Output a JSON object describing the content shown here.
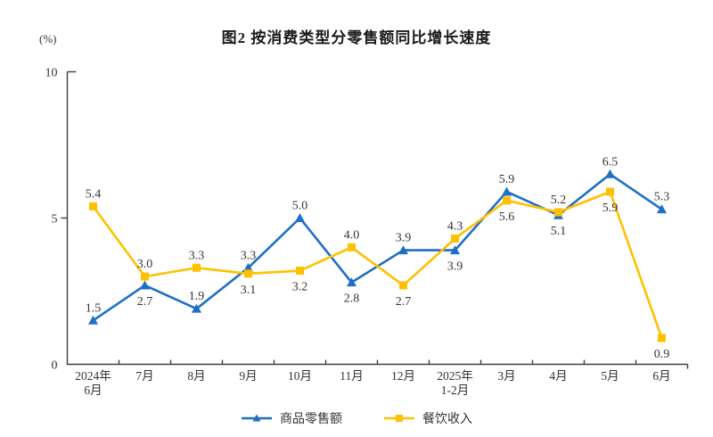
{
  "chart_data": {
    "type": "line",
    "title": "图2 按消费类型分零售额同比增长速度",
    "unit": "(%)",
    "categories": [
      [
        "2024年",
        "6月"
      ],
      [
        "7月"
      ],
      [
        "8月"
      ],
      [
        "9月"
      ],
      [
        "10月"
      ],
      [
        "11月"
      ],
      [
        "12月"
      ],
      [
        "2025年",
        "1-2月"
      ],
      [
        "3月"
      ],
      [
        "4月"
      ],
      [
        "5月"
      ],
      [
        "6月"
      ]
    ],
    "ylim": [
      0,
      10
    ],
    "yticks": [
      0,
      5,
      10
    ],
    "grid": false,
    "legend_position": "bottom",
    "axis_color": "#404040",
    "label_color": "#333333",
    "series": [
      {
        "name": "商品零售额",
        "color": "#1F6FC5",
        "marker": "triangle",
        "values": [
          1.5,
          2.7,
          1.9,
          3.3,
          5.0,
          2.8,
          3.9,
          3.9,
          5.9,
          5.1,
          6.5,
          5.3
        ],
        "label_sides": [
          "above",
          "below",
          "above",
          "above",
          "above",
          "below",
          "above",
          "below",
          "above",
          "below",
          "above",
          "above"
        ]
      },
      {
        "name": "餐饮收入",
        "color": "#FFC000",
        "marker": "square",
        "values": [
          5.4,
          3.0,
          3.3,
          3.1,
          3.2,
          4.0,
          2.7,
          4.3,
          5.6,
          5.2,
          5.9,
          0.9
        ],
        "label_sides": [
          "above",
          "above",
          "above",
          "below",
          "below",
          "above",
          "below",
          "above",
          "below",
          "above",
          "below",
          "below"
        ]
      }
    ]
  }
}
